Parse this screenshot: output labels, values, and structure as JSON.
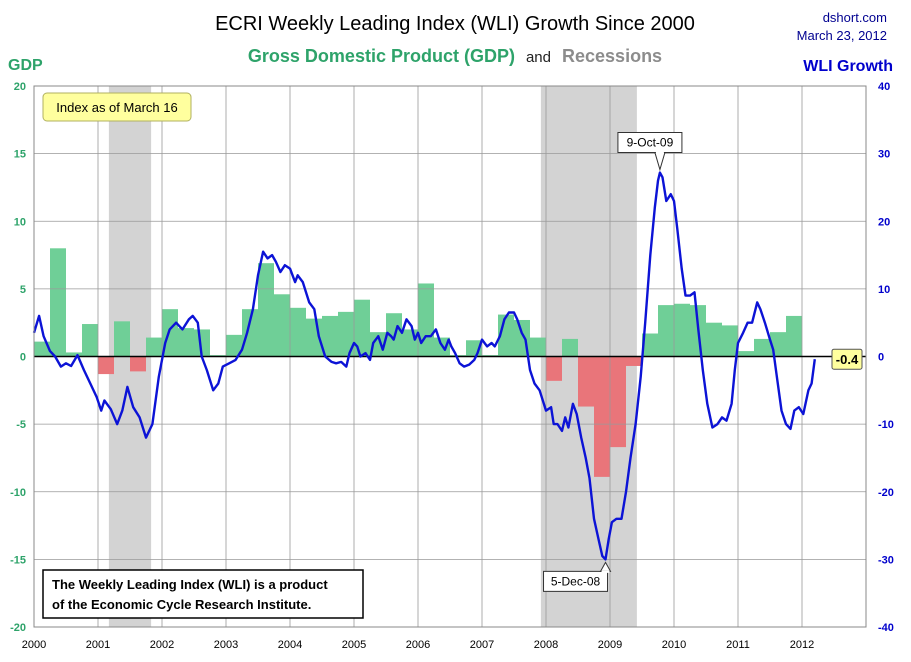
{
  "chart_data": {
    "type": "bar+line",
    "title": "ECRI Weekly Leading Index (WLI) Growth Since 2000",
    "subtitle": {
      "part1": "Gross Domestic Product (GDP)",
      "part2": "and",
      "part3": "Recessions"
    },
    "source": "dshort.com",
    "date": "March 23, 2012",
    "left_axis": {
      "label": "GDP",
      "range": [
        -20,
        20
      ],
      "ticks": [
        "20",
        "15",
        "10",
        "5",
        "0",
        "-5",
        "-10",
        "-15",
        "-20"
      ]
    },
    "right_axis": {
      "label": "WLI Growth",
      "range": [
        -40,
        40
      ],
      "ticks": [
        "40",
        "30",
        "20",
        "10",
        "0",
        "-10",
        "-20",
        "-30",
        "-40"
      ]
    },
    "x_axis": {
      "range": [
        2000,
        2013
      ],
      "ticks": [
        "2000",
        "2001",
        "2002",
        "2003",
        "2004",
        "2005",
        "2006",
        "2007",
        "2008",
        "2009",
        "2010",
        "2011",
        "2012"
      ]
    },
    "recessions": [
      [
        2001.17,
        2001.83
      ],
      [
        2007.92,
        2009.42
      ]
    ],
    "gdp_quarterly": {
      "start": 2000.0,
      "step": 0.25,
      "values": [
        1.1,
        8.0,
        0.3,
        2.4,
        -1.3,
        2.6,
        -1.1,
        1.4,
        3.5,
        2.1,
        2.0,
        0.1,
        1.6,
        3.5,
        6.9,
        4.6,
        3.6,
        2.8,
        3.0,
        3.3,
        4.2,
        1.8,
        3.2,
        2.0,
        5.4,
        1.4,
        0.1,
        1.2,
        0.1,
        3.1,
        2.7,
        1.4,
        -1.8,
        1.3,
        -3.7,
        -8.9,
        -6.7,
        -0.7,
        1.7,
        3.8,
        3.9,
        3.8,
        2.5,
        2.3,
        0.4,
        1.3,
        1.8,
        3.0
      ]
    },
    "wli_series": {
      "name": "WLI Growth",
      "points": [
        [
          2000.0,
          3.5
        ],
        [
          2000.08,
          6.0
        ],
        [
          2000.15,
          3.0
        ],
        [
          2000.25,
          0.8
        ],
        [
          2000.33,
          0.0
        ],
        [
          2000.42,
          -1.5
        ],
        [
          2000.5,
          -1.0
        ],
        [
          2000.58,
          -1.4
        ],
        [
          2000.68,
          0.2
        ],
        [
          2000.78,
          -2.0
        ],
        [
          2000.88,
          -4.0
        ],
        [
          2000.98,
          -6.0
        ],
        [
          2001.05,
          -8.0
        ],
        [
          2001.1,
          -6.5
        ],
        [
          2001.2,
          -7.8
        ],
        [
          2001.3,
          -10.0
        ],
        [
          2001.38,
          -8.0
        ],
        [
          2001.46,
          -4.5
        ],
        [
          2001.55,
          -7.5
        ],
        [
          2001.65,
          -9.0
        ],
        [
          2001.75,
          -12.0
        ],
        [
          2001.85,
          -10.0
        ],
        [
          2001.95,
          -3.0
        ],
        [
          2002.05,
          2.0
        ],
        [
          2002.12,
          4.0
        ],
        [
          2002.22,
          5.0
        ],
        [
          2002.32,
          4.0
        ],
        [
          2002.42,
          5.5
        ],
        [
          2002.48,
          6.0
        ],
        [
          2002.56,
          5.0
        ],
        [
          2002.62,
          0.0
        ],
        [
          2002.7,
          -2.0
        ],
        [
          2002.8,
          -5.0
        ],
        [
          2002.88,
          -4.0
        ],
        [
          2002.95,
          -1.5
        ],
        [
          2003.05,
          -1.0
        ],
        [
          2003.15,
          -0.5
        ],
        [
          2003.25,
          1.0
        ],
        [
          2003.33,
          3.5
        ],
        [
          2003.42,
          7.0
        ],
        [
          2003.5,
          12.0
        ],
        [
          2003.58,
          15.5
        ],
        [
          2003.65,
          14.5
        ],
        [
          2003.72,
          15.0
        ],
        [
          2003.78,
          14.0
        ],
        [
          2003.85,
          12.5
        ],
        [
          2003.92,
          13.5
        ],
        [
          2004.0,
          13.0
        ],
        [
          2004.08,
          11.0
        ],
        [
          2004.12,
          12.0
        ],
        [
          2004.2,
          11.0
        ],
        [
          2004.3,
          8.0
        ],
        [
          2004.38,
          7.0
        ],
        [
          2004.45,
          3.0
        ],
        [
          2004.55,
          0.0
        ],
        [
          2004.65,
          -0.8
        ],
        [
          2004.72,
          -1.0
        ],
        [
          2004.8,
          -0.8
        ],
        [
          2004.88,
          -1.5
        ],
        [
          2004.93,
          0.5
        ],
        [
          2005.0,
          2.0
        ],
        [
          2005.05,
          1.5
        ],
        [
          2005.1,
          0.0
        ],
        [
          2005.18,
          0.5
        ],
        [
          2005.25,
          -0.5
        ],
        [
          2005.3,
          2.0
        ],
        [
          2005.38,
          3.0
        ],
        [
          2005.45,
          1.0
        ],
        [
          2005.52,
          3.5
        ],
        [
          2005.58,
          3.0
        ],
        [
          2005.62,
          2.5
        ],
        [
          2005.68,
          4.5
        ],
        [
          2005.75,
          3.5
        ],
        [
          2005.82,
          5.5
        ],
        [
          2005.9,
          4.5
        ],
        [
          2005.95,
          2.5
        ],
        [
          2006.0,
          3.5
        ],
        [
          2006.05,
          2.0
        ],
        [
          2006.12,
          3.0
        ],
        [
          2006.2,
          3.0
        ],
        [
          2006.28,
          4.0
        ],
        [
          2006.35,
          2.0
        ],
        [
          2006.42,
          1.0
        ],
        [
          2006.48,
          2.5
        ],
        [
          2006.52,
          1.5
        ],
        [
          2006.58,
          0.5
        ],
        [
          2006.65,
          -1.0
        ],
        [
          2006.72,
          -1.5
        ],
        [
          2006.8,
          -1.2
        ],
        [
          2006.88,
          -0.5
        ],
        [
          2006.93,
          0.5
        ],
        [
          2007.0,
          2.5
        ],
        [
          2007.08,
          1.5
        ],
        [
          2007.15,
          2.0
        ],
        [
          2007.2,
          1.5
        ],
        [
          2007.28,
          3.0
        ],
        [
          2007.35,
          5.5
        ],
        [
          2007.42,
          6.5
        ],
        [
          2007.5,
          6.5
        ],
        [
          2007.55,
          5.5
        ],
        [
          2007.62,
          3.5
        ],
        [
          2007.68,
          2.5
        ],
        [
          2007.75,
          -2.0
        ],
        [
          2007.82,
          -4.0
        ],
        [
          2007.9,
          -5.0
        ],
        [
          2008.0,
          -8.0
        ],
        [
          2008.08,
          -7.5
        ],
        [
          2008.12,
          -10.0
        ],
        [
          2008.18,
          -10.0
        ],
        [
          2008.25,
          -11.0
        ],
        [
          2008.3,
          -9.0
        ],
        [
          2008.35,
          -10.5
        ],
        [
          2008.42,
          -7.0
        ],
        [
          2008.48,
          -8.5
        ],
        [
          2008.55,
          -12.0
        ],
        [
          2008.62,
          -15.0
        ],
        [
          2008.68,
          -18.0
        ],
        [
          2008.75,
          -24.0
        ],
        [
          2008.82,
          -27.0
        ],
        [
          2008.88,
          -29.5
        ],
        [
          2008.93,
          -30.0
        ],
        [
          2008.98,
          -27.0
        ],
        [
          2009.03,
          -24.5
        ],
        [
          2009.1,
          -24.0
        ],
        [
          2009.18,
          -24.0
        ],
        [
          2009.25,
          -20.0
        ],
        [
          2009.32,
          -15.0
        ],
        [
          2009.4,
          -10.0
        ],
        [
          2009.48,
          -3.0
        ],
        [
          2009.55,
          5.0
        ],
        [
          2009.63,
          15.0
        ],
        [
          2009.7,
          22.0
        ],
        [
          2009.75,
          26.0
        ],
        [
          2009.78,
          27.2
        ],
        [
          2009.82,
          26.5
        ],
        [
          2009.88,
          23.0
        ],
        [
          2009.95,
          24.0
        ],
        [
          2010.0,
          23.0
        ],
        [
          2010.05,
          19.0
        ],
        [
          2010.12,
          13.0
        ],
        [
          2010.18,
          9.0
        ],
        [
          2010.25,
          9.0
        ],
        [
          2010.32,
          9.5
        ],
        [
          2010.38,
          4.0
        ],
        [
          2010.45,
          -2.0
        ],
        [
          2010.52,
          -7.0
        ],
        [
          2010.6,
          -10.5
        ],
        [
          2010.68,
          -10.0
        ],
        [
          2010.75,
          -9.0
        ],
        [
          2010.82,
          -9.5
        ],
        [
          2010.9,
          -7.0
        ],
        [
          2010.95,
          -2.0
        ],
        [
          2011.0,
          2.0
        ],
        [
          2011.08,
          3.5
        ],
        [
          2011.15,
          5.0
        ],
        [
          2011.22,
          5.0
        ],
        [
          2011.3,
          8.0
        ],
        [
          2011.35,
          7.0
        ],
        [
          2011.42,
          5.0
        ],
        [
          2011.5,
          2.5
        ],
        [
          2011.55,
          1.0
        ],
        [
          2011.6,
          -2.5
        ],
        [
          2011.68,
          -8.0
        ],
        [
          2011.75,
          -10.0
        ],
        [
          2011.82,
          -10.7
        ],
        [
          2011.88,
          -8.0
        ],
        [
          2011.95,
          -7.5
        ],
        [
          2012.02,
          -8.5
        ],
        [
          2012.1,
          -5.0
        ],
        [
          2012.15,
          -4.0
        ],
        [
          2012.2,
          -0.4
        ]
      ]
    },
    "last_value_label": "-0.4",
    "annotations": [
      {
        "text": "9-Oct-09",
        "x": 2009.78,
        "y": 27.2
      },
      {
        "text": "5-Dec-08",
        "x": 2008.93,
        "y": -30.0
      }
    ],
    "index_note": "Index as of March 16",
    "source_note": [
      "The Weekly Leading Index (WLI) is a product",
      "of the Economic Cycle Research Institute."
    ],
    "colors": {
      "gdp_positive": "#6fcf97",
      "gdp_negative": "#e9757a",
      "recession": "#d3d3d3",
      "wli_line": "#0c13d6",
      "gdp_text": "#2ea36a",
      "wli_text": "#0000cc",
      "recession_text": "#8c8c8c",
      "grid": "#999999",
      "note_bg": "#ffff9e"
    }
  }
}
